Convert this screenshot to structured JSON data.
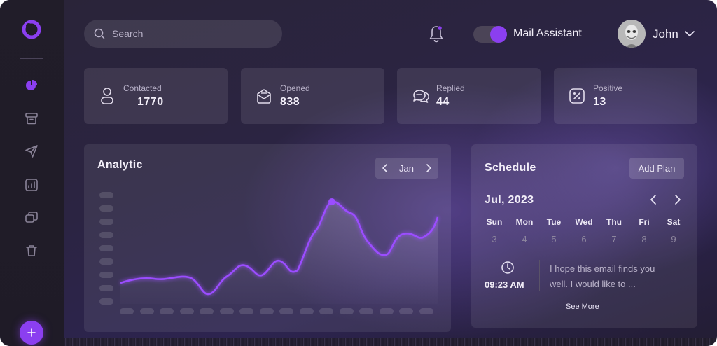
{
  "header": {
    "search_placeholder": "Search",
    "assistant_label": "Mail Assistant",
    "assistant_enabled": true,
    "user_name": "John"
  },
  "sidebar": {
    "items": [
      {
        "icon": "pie-chart-icon",
        "active": true
      },
      {
        "icon": "archive-icon",
        "active": false
      },
      {
        "icon": "send-icon",
        "active": false
      },
      {
        "icon": "analytics-icon",
        "active": false
      },
      {
        "icon": "chat-icon",
        "active": false
      },
      {
        "icon": "trash-icon",
        "active": false
      }
    ],
    "add_icon": "plus-icon"
  },
  "stats": [
    {
      "label": "Contacted",
      "value": "1770",
      "icon": "user-icon"
    },
    {
      "label": "Opened",
      "value": "838",
      "icon": "mail-open-icon"
    },
    {
      "label": "Replied",
      "value": "44",
      "icon": "reply-chat-icon"
    },
    {
      "label": "Positive",
      "value": "13",
      "icon": "percent-icon"
    }
  ],
  "analytic": {
    "title": "Analytic",
    "month": "Jan"
  },
  "schedule": {
    "title": "Schedule",
    "add_plan_label": "Add Plan",
    "month_year": "Jul, 2023",
    "days": [
      {
        "name": "Sun",
        "num": "3"
      },
      {
        "name": "Mon",
        "num": "4"
      },
      {
        "name": "Tue",
        "num": "5"
      },
      {
        "name": "Wed",
        "num": "6"
      },
      {
        "name": "Thu",
        "num": "7"
      },
      {
        "name": "Fri",
        "num": "8"
      },
      {
        "name": "Sat",
        "num": "9"
      }
    ],
    "event": {
      "time": "09:23 AM",
      "line1": "I hope this email finds you",
      "line2": "well. I would like to ..."
    },
    "see_more_label": "See More"
  },
  "colors": {
    "accent": "#8b3ff0",
    "line": "#9b4dff",
    "sidebar_bg": "#211d29"
  }
}
